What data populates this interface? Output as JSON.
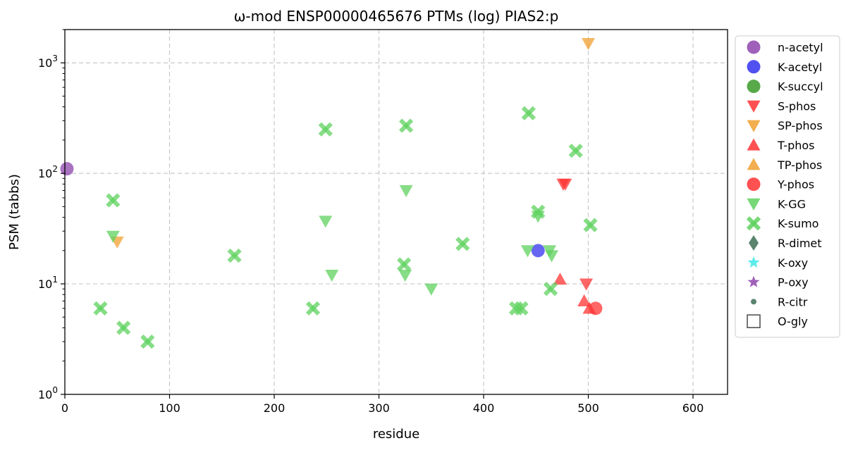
{
  "chart_data": {
    "type": "scatter",
    "title": "ω-mod ENSP00000465676 PTMs (log) PIAS2:p",
    "xlabel": "residue",
    "ylabel": "PSM (tabbs)",
    "xlim": [
      0,
      633
    ],
    "ylim": [
      1,
      2000
    ],
    "yscale": "log",
    "grid": true,
    "legend_position": "right-outside",
    "x_ticks": [
      "0",
      "100",
      "200",
      "300",
      "400",
      "500",
      "600"
    ],
    "y_ticks": [
      {
        "base": "10",
        "exp": "0"
      },
      {
        "base": "10",
        "exp": "1"
      },
      {
        "base": "10",
        "exp": "2"
      },
      {
        "base": "10",
        "exp": "3"
      }
    ],
    "series": [
      {
        "name": "n-acetyl",
        "marker": "circle",
        "color": "#8e44ad",
        "points": [
          [
            2,
            110
          ]
        ]
      },
      {
        "name": "K-acetyl",
        "marker": "circle",
        "color": "#3333ee",
        "points": [
          [
            452,
            20
          ]
        ]
      },
      {
        "name": "K-succyl",
        "marker": "circle",
        "color": "#3a9a2a",
        "points": []
      },
      {
        "name": "S-phos",
        "marker": "triangle-down",
        "color": "#ff3333",
        "points": [
          [
            476,
            80
          ],
          [
            478,
            80
          ],
          [
            498,
            10
          ]
        ]
      },
      {
        "name": "SP-phos",
        "marker": "triangle-down",
        "color": "#f0a030",
        "points": [
          [
            50,
            24
          ],
          [
            500,
            1500
          ]
        ]
      },
      {
        "name": "T-phos",
        "marker": "triangle-up",
        "color": "#ff3333",
        "points": [
          [
            473,
            11
          ],
          [
            496,
            7
          ],
          [
            501,
            6
          ]
        ]
      },
      {
        "name": "TP-phos",
        "marker": "triangle-up",
        "color": "#f0a030",
        "points": []
      },
      {
        "name": "Y-phos",
        "marker": "circle",
        "color": "#ff3333",
        "points": [
          [
            507,
            6
          ]
        ]
      },
      {
        "name": "K-GG",
        "marker": "triangle-down",
        "color": "#5ed15e",
        "points": [
          [
            46,
            27
          ],
          [
            249,
            37
          ],
          [
            255,
            12
          ],
          [
            325,
            12
          ],
          [
            326,
            70
          ],
          [
            350,
            9
          ],
          [
            442,
            20
          ],
          [
            452,
            41
          ],
          [
            463,
            20
          ],
          [
            465,
            18
          ]
        ]
      },
      {
        "name": "K-sumo",
        "marker": "x",
        "color": "#5ed15e",
        "points": [
          [
            34,
            6
          ],
          [
            46,
            57
          ],
          [
            56,
            4
          ],
          [
            79,
            3
          ],
          [
            162,
            18
          ],
          [
            237,
            6
          ],
          [
            249,
            250
          ],
          [
            324,
            15
          ],
          [
            326,
            270
          ],
          [
            380,
            23
          ],
          [
            431,
            6
          ],
          [
            436,
            6
          ],
          [
            443,
            350
          ],
          [
            452,
            45
          ],
          [
            464,
            9
          ],
          [
            488,
            160
          ],
          [
            502,
            34
          ]
        ]
      },
      {
        "name": "R-dimet",
        "marker": "diamond",
        "color": "#3d6e55",
        "points": []
      },
      {
        "name": "K-oxy",
        "marker": "star",
        "color": "#40e8e8",
        "points": []
      },
      {
        "name": "P-oxy",
        "marker": "star",
        "color": "#8e44ad",
        "points": []
      },
      {
        "name": "R-citr",
        "marker": "dot",
        "color": "#3d6e55",
        "points": []
      },
      {
        "name": "O-gly",
        "marker": "square-open",
        "color": "#555555",
        "points": []
      }
    ]
  }
}
